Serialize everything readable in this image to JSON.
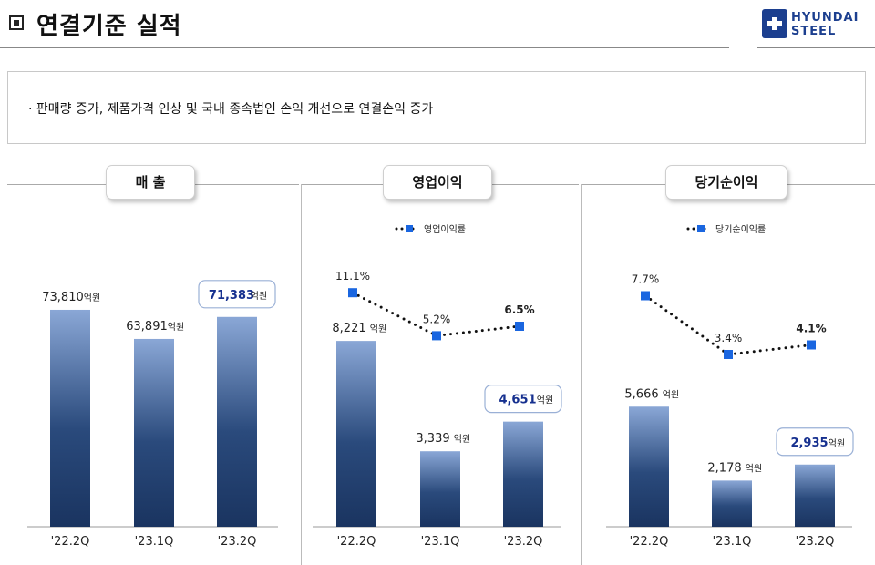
{
  "header": {
    "title": "연결기준 실적"
  },
  "logo": {
    "line1": "HYUNDAI",
    "line2": "STEEL"
  },
  "summary": {
    "text": "· 판매량 증가, 제품가격 인상 및 국내 종속법인 손익 개선으로 연결손익 증가"
  },
  "colors": {
    "bar_top": "#8aa7d6",
    "bar_bottom": "#1a3460",
    "highlight_text": "#16308f",
    "marker": "#1a66e0"
  },
  "chart_data": [
    {
      "type": "bar",
      "title": "매 출",
      "categories": [
        "'22.2Q",
        "'23.1Q",
        "'23.2Q"
      ],
      "values": [
        73810,
        63891,
        71383
      ],
      "value_labels": [
        "73,810",
        "63,891",
        "71,383"
      ],
      "unit": "억원",
      "highlight_index": 2,
      "ylim": [
        0,
        80000
      ]
    },
    {
      "type": "bar",
      "title": "영업이익",
      "categories": [
        "'22.2Q",
        "'23.1Q",
        "'23.2Q"
      ],
      "values": [
        8221,
        3339,
        4651
      ],
      "value_labels": [
        "8,221",
        "3,339",
        "4,651"
      ],
      "unit": "억원",
      "highlight_index": 2,
      "ylim": [
        0,
        10000
      ],
      "line": {
        "name": "영업이익률",
        "values": [
          11.1,
          5.2,
          6.5
        ],
        "labels": [
          "11.1%",
          "5.2%",
          "6.5%"
        ],
        "ylim": [
          0,
          20
        ]
      },
      "legend_position": "top-center"
    },
    {
      "type": "bar",
      "title": "당기순이익",
      "categories": [
        "'22.2Q",
        "'23.1Q",
        "'23.2Q"
      ],
      "values": [
        5666,
        2178,
        2935
      ],
      "value_labels": [
        "5,666",
        "2,178",
        "2,935"
      ],
      "unit": "억원",
      "highlight_index": 2,
      "ylim": [
        0,
        8000
      ],
      "line": {
        "name": "당기순이익률",
        "values": [
          7.7,
          3.4,
          4.1
        ],
        "labels": [
          "7.7%",
          "3.4%",
          "4.1%"
        ],
        "ylim": [
          0,
          14
        ]
      },
      "legend_position": "top-center"
    }
  ]
}
